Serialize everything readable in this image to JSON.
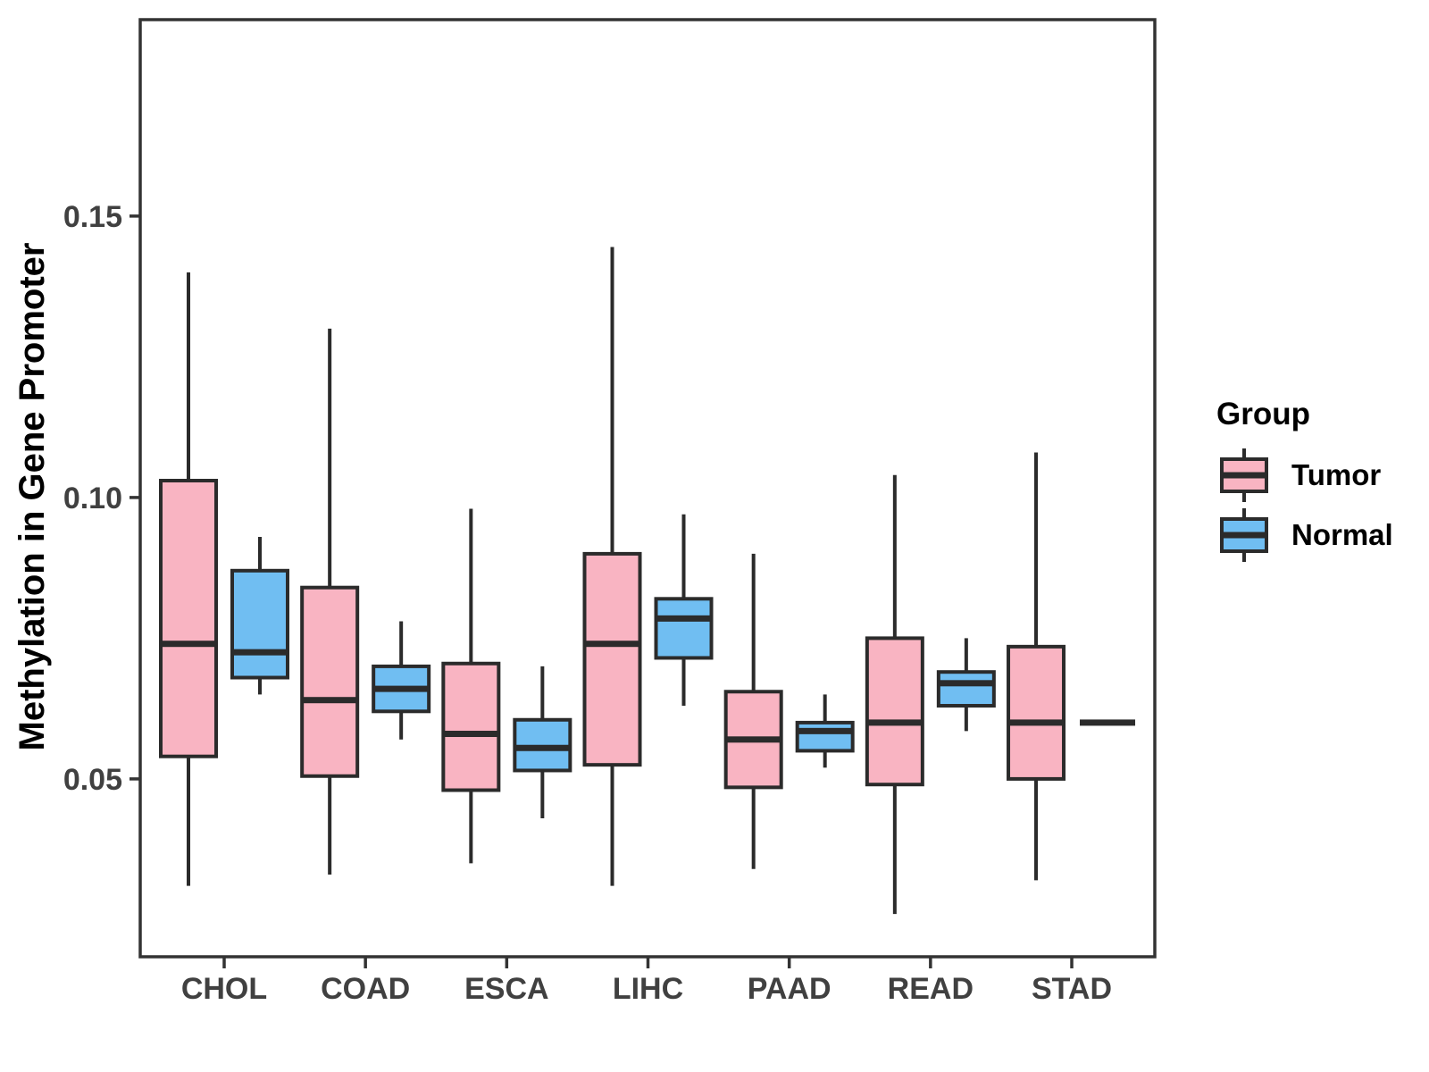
{
  "figure": {
    "background": "#ffffff"
  },
  "y_axis": {
    "title": "Methylation in Gene Promoter",
    "tick_labels": [
      "0.05",
      "0.10",
      "0.15"
    ],
    "tick_values": [
      0.05,
      0.1,
      0.15
    ],
    "text_color": "#404040"
  },
  "x_axis": {
    "categories": [
      "CHOL",
      "COAD",
      "ESCA",
      "LIHC",
      "PAAD",
      "READ",
      "STAD"
    ],
    "text_color": "#404040"
  },
  "legend": {
    "title": "Group",
    "items": [
      {
        "label": "Tumor",
        "color": "#F9B4C2"
      },
      {
        "label": "Normal",
        "color": "#70BEF2"
      }
    ]
  },
  "chart_data": {
    "type": "boxplot",
    "title": "",
    "xlabel": "",
    "ylabel": "Methylation in Gene Promoter",
    "ylim": [
      0.0184,
      0.1849
    ],
    "yticks": [
      0.05,
      0.1,
      0.15
    ],
    "grid": false,
    "legend_position": "right",
    "categories": [
      "CHOL",
      "COAD",
      "ESCA",
      "LIHC",
      "PAAD",
      "READ",
      "STAD"
    ],
    "series": [
      {
        "name": "Tumor",
        "color": "#F9B4C2",
        "boxes": [
          {
            "category": "CHOL",
            "whisker_low": 0.031,
            "q1": 0.054,
            "median": 0.074,
            "q3": 0.103,
            "whisker_high": 0.14
          },
          {
            "category": "COAD",
            "whisker_low": 0.033,
            "q1": 0.0505,
            "median": 0.064,
            "q3": 0.084,
            "whisker_high": 0.13
          },
          {
            "category": "ESCA",
            "whisker_low": 0.035,
            "q1": 0.048,
            "median": 0.058,
            "q3": 0.0705,
            "whisker_high": 0.098
          },
          {
            "category": "LIHC",
            "whisker_low": 0.031,
            "q1": 0.0525,
            "median": 0.074,
            "q3": 0.09,
            "whisker_high": 0.1445
          },
          {
            "category": "PAAD",
            "whisker_low": 0.034,
            "q1": 0.0485,
            "median": 0.057,
            "q3": 0.0655,
            "whisker_high": 0.09
          },
          {
            "category": "READ",
            "whisker_low": 0.026,
            "q1": 0.049,
            "median": 0.06,
            "q3": 0.075,
            "whisker_high": 0.104
          },
          {
            "category": "STAD",
            "whisker_low": 0.032,
            "q1": 0.05,
            "median": 0.06,
            "q3": 0.0735,
            "whisker_high": 0.108
          }
        ]
      },
      {
        "name": "Normal",
        "color": "#70BEF2",
        "boxes": [
          {
            "category": "CHOL",
            "whisker_low": 0.065,
            "q1": 0.068,
            "median": 0.0725,
            "q3": 0.087,
            "whisker_high": 0.093
          },
          {
            "category": "COAD",
            "whisker_low": 0.057,
            "q1": 0.062,
            "median": 0.066,
            "q3": 0.07,
            "whisker_high": 0.078
          },
          {
            "category": "ESCA",
            "whisker_low": 0.043,
            "q1": 0.0515,
            "median": 0.0555,
            "q3": 0.0605,
            "whisker_high": 0.07
          },
          {
            "category": "LIHC",
            "whisker_low": 0.063,
            "q1": 0.0715,
            "median": 0.0785,
            "q3": 0.082,
            "whisker_high": 0.097
          },
          {
            "category": "PAAD",
            "whisker_low": 0.052,
            "q1": 0.055,
            "median": 0.0585,
            "q3": 0.06,
            "whisker_high": 0.065
          },
          {
            "category": "READ",
            "whisker_low": 0.0585,
            "q1": 0.063,
            "median": 0.067,
            "q3": 0.069,
            "whisker_high": 0.075
          },
          {
            "category": "STAD",
            "whisker_low": null,
            "q1": 0.06,
            "median": 0.06,
            "q3": 0.06,
            "whisker_high": null
          }
        ]
      }
    ],
    "style": {
      "box_stroke": "#2B2B2B",
      "panel_border": "#333333",
      "axis_text": "#404040"
    }
  }
}
